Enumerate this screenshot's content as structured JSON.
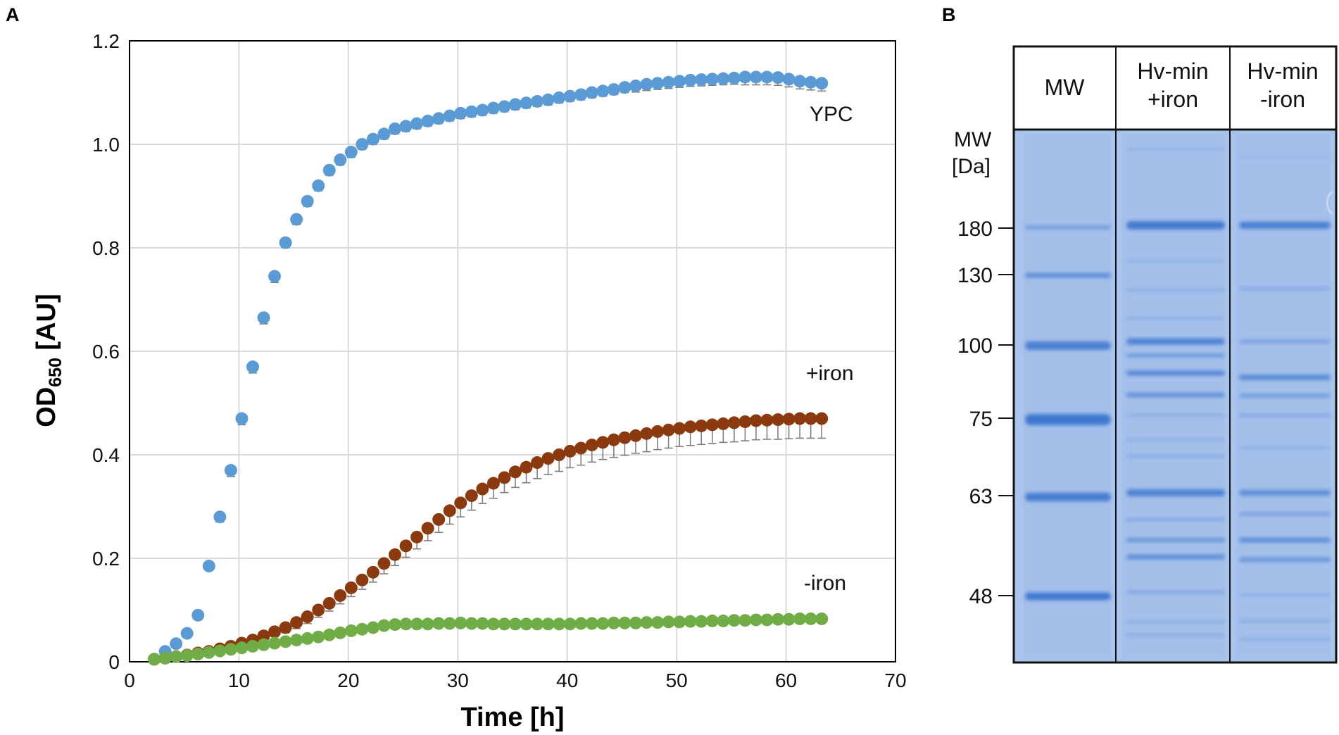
{
  "panels": {
    "a": "A",
    "b": "B"
  },
  "chart_data": {
    "type": "scatter",
    "xlabel": "Time [h]",
    "ylabel_main": "OD",
    "ylabel_sub": "650",
    "ylabel_unit": " [AU]",
    "xlim": [
      0,
      70
    ],
    "ylim": [
      0,
      1.2
    ],
    "xticks": [
      "0",
      "10",
      "20",
      "30",
      "40",
      "50",
      "60",
      "70"
    ],
    "yticks": [
      "0",
      "0.2",
      "0.4",
      "0.6",
      "0.8",
      "1.0",
      "1.2"
    ],
    "grid": true,
    "x": [
      2,
      3,
      4,
      5,
      6,
      7,
      8,
      9,
      10,
      11,
      12,
      13,
      14,
      15,
      16,
      17,
      18,
      19,
      20,
      21,
      22,
      23,
      24,
      25,
      26,
      27,
      28,
      29,
      30,
      31,
      32,
      33,
      34,
      35,
      36,
      37,
      38,
      39,
      40,
      41,
      42,
      43,
      44,
      45,
      46,
      47,
      48,
      49,
      50,
      51,
      52,
      53,
      54,
      55,
      56,
      57,
      58,
      59,
      60,
      61,
      62,
      63
    ],
    "series": [
      {
        "name": "YPC",
        "color": "#5b9bd5",
        "values": [
          0.005,
          0.02,
          0.035,
          0.055,
          0.09,
          0.185,
          0.28,
          0.37,
          0.47,
          0.57,
          0.665,
          0.745,
          0.81,
          0.855,
          0.89,
          0.92,
          0.95,
          0.97,
          0.985,
          1.0,
          1.01,
          1.02,
          1.03,
          1.035,
          1.04,
          1.045,
          1.05,
          1.055,
          1.06,
          1.063,
          1.066,
          1.07,
          1.073,
          1.077,
          1.08,
          1.083,
          1.086,
          1.09,
          1.093,
          1.096,
          1.1,
          1.103,
          1.106,
          1.11,
          1.113,
          1.116,
          1.118,
          1.12,
          1.122,
          1.124,
          1.125,
          1.126,
          1.127,
          1.128,
          1.13,
          1.13,
          1.13,
          1.129,
          1.126,
          1.122,
          1.12,
          1.118
        ],
        "errors": [
          0.003,
          0.003,
          0.003,
          0.004,
          0.005,
          0.008,
          0.01,
          0.012,
          0.012,
          0.012,
          0.012,
          0.012,
          0.01,
          0.01,
          0.01,
          0.01,
          0.01,
          0.01,
          0.01,
          0.01,
          0.01,
          0.01,
          0.01,
          0.01,
          0.01,
          0.01,
          0.01,
          0.01,
          0.01,
          0.01,
          0.01,
          0.01,
          0.01,
          0.01,
          0.01,
          0.01,
          0.01,
          0.01,
          0.01,
          0.01,
          0.01,
          0.01,
          0.01,
          0.01,
          0.012,
          0.012,
          0.012,
          0.012,
          0.012,
          0.012,
          0.012,
          0.012,
          0.012,
          0.012,
          0.015,
          0.015,
          0.015,
          0.015,
          0.015,
          0.015,
          0.015,
          0.015
        ],
        "label": "YPC"
      },
      {
        "name": "+iron",
        "color": "#8b3a0f",
        "values": [
          0.005,
          0.007,
          0.01,
          0.013,
          0.017,
          0.02,
          0.025,
          0.03,
          0.036,
          0.042,
          0.05,
          0.058,
          0.066,
          0.076,
          0.087,
          0.1,
          0.113,
          0.128,
          0.143,
          0.158,
          0.173,
          0.19,
          0.207,
          0.224,
          0.241,
          0.258,
          0.275,
          0.292,
          0.307,
          0.321,
          0.334,
          0.345,
          0.356,
          0.367,
          0.376,
          0.385,
          0.393,
          0.4,
          0.407,
          0.413,
          0.419,
          0.424,
          0.429,
          0.433,
          0.437,
          0.441,
          0.445,
          0.448,
          0.451,
          0.454,
          0.456,
          0.458,
          0.46,
          0.462,
          0.464,
          0.466,
          0.467,
          0.468,
          0.469,
          0.47,
          0.47,
          0.47
        ],
        "errors": [
          0.003,
          0.003,
          0.003,
          0.003,
          0.004,
          0.004,
          0.005,
          0.005,
          0.006,
          0.007,
          0.008,
          0.009,
          0.01,
          0.012,
          0.013,
          0.014,
          0.015,
          0.016,
          0.017,
          0.018,
          0.019,
          0.02,
          0.021,
          0.022,
          0.023,
          0.024,
          0.025,
          0.026,
          0.027,
          0.028,
          0.028,
          0.029,
          0.029,
          0.03,
          0.03,
          0.031,
          0.031,
          0.032,
          0.032,
          0.033,
          0.033,
          0.033,
          0.034,
          0.034,
          0.034,
          0.035,
          0.035,
          0.035,
          0.035,
          0.036,
          0.036,
          0.036,
          0.036,
          0.037,
          0.037,
          0.037,
          0.037,
          0.038,
          0.038,
          0.038,
          0.038,
          0.038
        ],
        "label": "+iron"
      },
      {
        "name": "-iron",
        "color": "#70ad47",
        "values": [
          0.005,
          0.007,
          0.01,
          0.012,
          0.015,
          0.018,
          0.021,
          0.024,
          0.027,
          0.03,
          0.033,
          0.036,
          0.039,
          0.042,
          0.045,
          0.048,
          0.052,
          0.056,
          0.06,
          0.063,
          0.066,
          0.07,
          0.072,
          0.073,
          0.073,
          0.073,
          0.074,
          0.074,
          0.075,
          0.074,
          0.074,
          0.073,
          0.073,
          0.073,
          0.073,
          0.073,
          0.073,
          0.073,
          0.073,
          0.074,
          0.074,
          0.074,
          0.075,
          0.075,
          0.075,
          0.076,
          0.076,
          0.077,
          0.077,
          0.078,
          0.078,
          0.079,
          0.079,
          0.08,
          0.08,
          0.081,
          0.081,
          0.082,
          0.082,
          0.083,
          0.083,
          0.083
        ],
        "errors": [
          0.002,
          0.002,
          0.002,
          0.002,
          0.002,
          0.002,
          0.002,
          0.003,
          0.003,
          0.003,
          0.003,
          0.003,
          0.003,
          0.003,
          0.003,
          0.003,
          0.003,
          0.003,
          0.003,
          0.004,
          0.004,
          0.004,
          0.004,
          0.004,
          0.004,
          0.004,
          0.004,
          0.004,
          0.004,
          0.004,
          0.004,
          0.004,
          0.004,
          0.004,
          0.004,
          0.004,
          0.004,
          0.004,
          0.004,
          0.004,
          0.004,
          0.004,
          0.004,
          0.004,
          0.004,
          0.004,
          0.004,
          0.004,
          0.004,
          0.004,
          0.004,
          0.004,
          0.004,
          0.004,
          0.004,
          0.004,
          0.004,
          0.004,
          0.004,
          0.004,
          0.004,
          0.004
        ],
        "label": "-iron"
      }
    ]
  },
  "gel": {
    "lanes": [
      {
        "name": "MW",
        "line1": "MW",
        "line2": ""
      },
      {
        "name": "Hv-min +iron",
        "line1": "Hv-min",
        "line2": "+iron"
      },
      {
        "name": "Hv-min -iron",
        "line1": "Hv-min",
        "line2": "-iron"
      }
    ],
    "mw_axis_label_line1": "MW",
    "mw_axis_label_line2": "[Da]",
    "markers": [
      "180",
      "130",
      "100",
      "75",
      "63",
      "48"
    ],
    "stain_color": "#a9c4ec",
    "band_color": "#3f78d0"
  }
}
